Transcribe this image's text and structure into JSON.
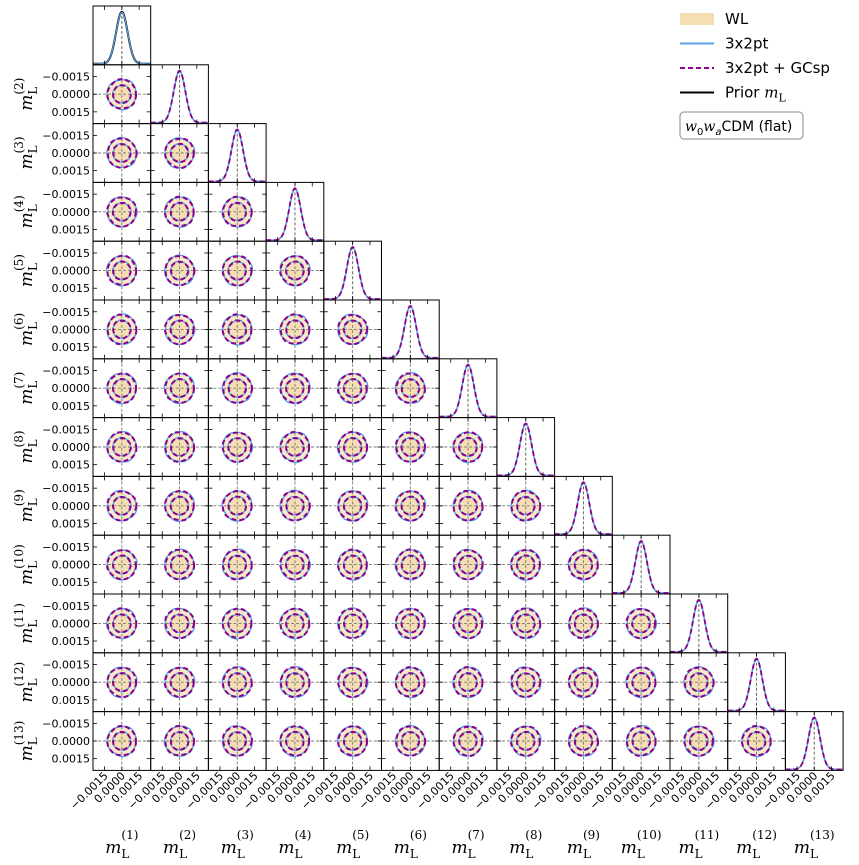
{
  "chart_data": {
    "type": "corner",
    "parameters": [
      "m_L^(1)",
      "m_L^(2)",
      "m_L^(3)",
      "m_L^(4)",
      "m_L^(5)",
      "m_L^(6)",
      "m_L^(7)",
      "m_L^(8)",
      "m_L^(9)",
      "m_L^(10)",
      "m_L^(11)",
      "m_L^(12)",
      "m_L^(13)"
    ],
    "param_symbol": "m",
    "param_subscript": "L",
    "param_indices": [
      "(1)",
      "(2)",
      "(3)",
      "(4)",
      "(5)",
      "(6)",
      "(7)",
      "(8)",
      "(9)",
      "(10)",
      "(11)",
      "(12)",
      "(13)"
    ],
    "axis_range": [
      -0.0025,
      0.0025
    ],
    "tick_values": [
      -0.0015,
      0.0,
      0.0015
    ],
    "tick_labels": [
      "−0.0015",
      "0.0000",
      "0.0015"
    ],
    "y_tick_labels": [
      "0.0015",
      "0.0000",
      "−0.0015"
    ],
    "fiducial": 0.0,
    "prior_sigma": 0.0005,
    "contour_levels": [
      "1-sigma",
      "2-sigma"
    ],
    "series": [
      {
        "name": "WL",
        "style": "filled",
        "color": "#f5deb3",
        "sigma": 0.0005
      },
      {
        "name": "3x2pt",
        "style": "solid line",
        "color": "#5aa0e6",
        "sigma": 0.0005
      },
      {
        "name": "3x2pt + GCsp",
        "style": "dashed line",
        "color": "#8b008b",
        "sigma": 0.0005
      },
      {
        "name": "Prior",
        "name_symbol": "m",
        "name_subscript": "L",
        "style": "solid line",
        "color": "#000000",
        "sigma": 0.0005
      }
    ],
    "annotation": {
      "symbol_w": "w",
      "sub0": "0",
      "symbol_w2": "w",
      "suba": "a",
      "text": "CDM (flat)"
    },
    "legend_position": "top-right"
  }
}
